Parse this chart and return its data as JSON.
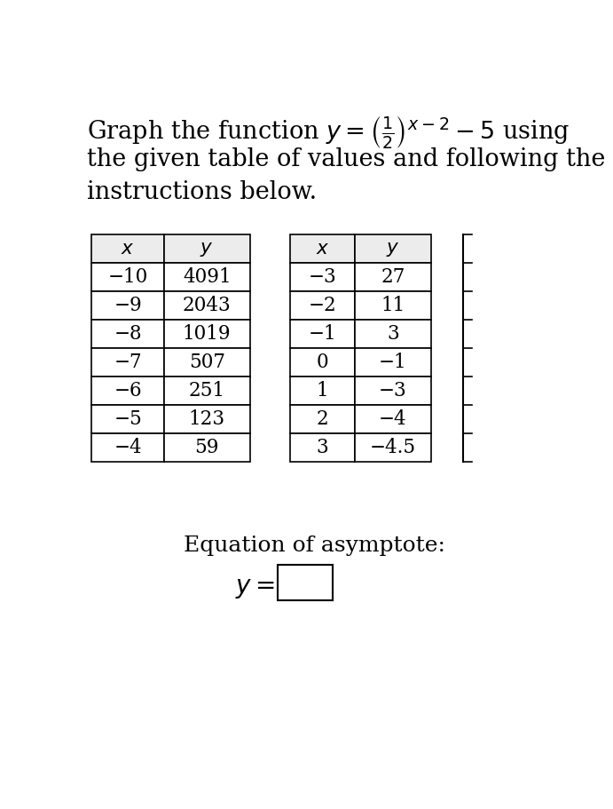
{
  "title_lines": [
    "Graph the function $y = \\left(\\frac{1}{2}\\right)^{x-2} - 5$ using",
    "the given table of values and following the",
    "instructions below."
  ],
  "table1": {
    "headers": [
      "x",
      "y"
    ],
    "rows": [
      [
        "−10",
        "4091"
      ],
      [
        "−9",
        "2043"
      ],
      [
        "−8",
        "1019"
      ],
      [
        "−7",
        "507"
      ],
      [
        "−6",
        "251"
      ],
      [
        "−5",
        "123"
      ],
      [
        "−4",
        "59"
      ]
    ]
  },
  "table2": {
    "headers": [
      "x",
      "y"
    ],
    "rows": [
      [
        "−3",
        "27"
      ],
      [
        "−2",
        "11"
      ],
      [
        "−1",
        "3"
      ],
      [
        "0",
        "−1"
      ],
      [
        "1",
        "−3"
      ],
      [
        "2",
        "−4"
      ],
      [
        "3",
        "−4.5"
      ]
    ]
  },
  "asymptote_label": "Equation of asymptote:",
  "bg_color": "#ffffff",
  "text_color": "#000000",
  "header_bg": "#ececec",
  "table_border_color": "#000000"
}
